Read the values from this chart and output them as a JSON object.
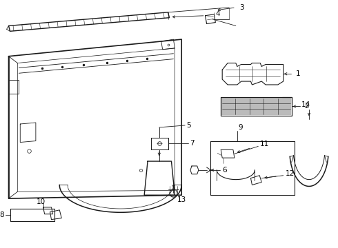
{
  "bg_color": "#ffffff",
  "line_color": "#1a1a1a",
  "label_color": "#000000",
  "lw_body": 1.0,
  "lw_detail": 0.6,
  "lw_thin": 0.4,
  "font_size": 7.5
}
